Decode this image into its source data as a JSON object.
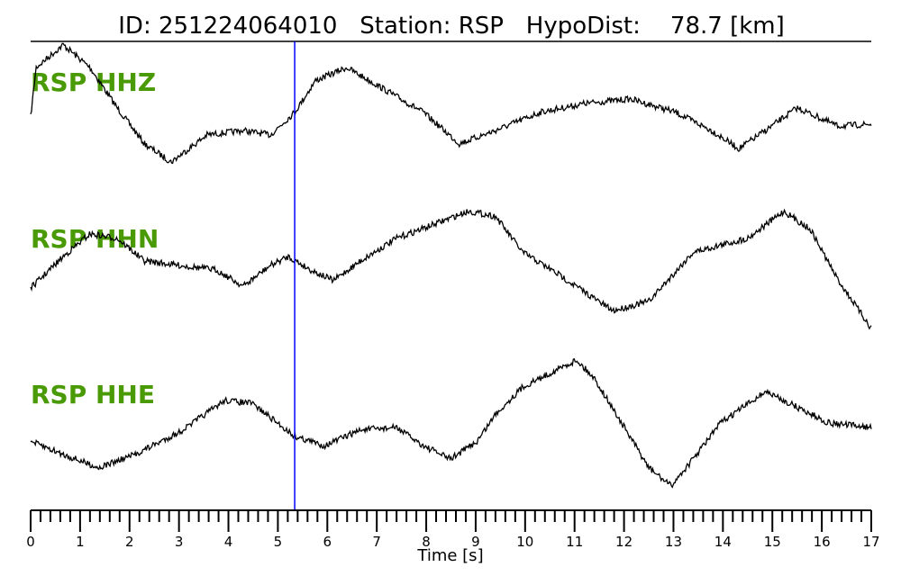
{
  "chart_data": {
    "type": "line",
    "title": "ID: 251224064010   Station: RSP   HypoDist:    78.7 [km]",
    "xlabel": "Time [s]",
    "xlim": [
      0,
      17
    ],
    "xticks": [
      "0",
      "1",
      "2",
      "3",
      "4",
      "5",
      "6",
      "7",
      "8",
      "9",
      "10",
      "11",
      "12",
      "13",
      "14",
      "15",
      "16",
      "17"
    ],
    "minor_tick_step": 0.2,
    "label_color": "#4a9a06",
    "trace_color": "#000000",
    "marker": {
      "time": 5.34,
      "color": "#0000ff"
    },
    "grid": false,
    "series": [
      {
        "name": "RSP HHZ",
        "t": [
          0,
          0.11,
          0.66,
          1.2,
          1.75,
          2.3,
          2.84,
          3.57,
          4.3,
          4.85,
          5.34,
          5.76,
          6.39,
          7.03,
          7.94,
          8.67,
          9.4,
          10.31,
          11.22,
          12.13,
          13.04,
          13.77,
          14.32,
          14.86,
          15.5,
          16.32,
          17
        ],
        "amp": [
          -0.29,
          0.5,
          0.86,
          0.5,
          -0.14,
          -0.71,
          -1.0,
          -0.57,
          -0.5,
          -0.57,
          -0.21,
          0.29,
          0.5,
          0.21,
          -0.21,
          -0.71,
          -0.5,
          -0.21,
          -0.07,
          0,
          -0.21,
          -0.5,
          -0.79,
          -0.5,
          -0.14,
          -0.43,
          -0.4
        ]
      },
      {
        "name": "RSP HHN",
        "t": [
          0,
          0.66,
          1.2,
          1.75,
          2.3,
          3.02,
          3.75,
          4.3,
          4.85,
          5.21,
          5.66,
          6.12,
          6.67,
          7.4,
          8.12,
          8.85,
          9.4,
          9.95,
          10.67,
          11.77,
          12.5,
          13.4,
          14.5,
          15.23,
          15.77,
          16.32,
          17
        ],
        "amp": [
          -0.43,
          0.07,
          0.43,
          0.36,
          0,
          -0.07,
          -0.14,
          -0.4,
          -0.07,
          0.07,
          -0.14,
          -0.31,
          0,
          0.36,
          0.57,
          0.79,
          0.71,
          0.14,
          -0.21,
          -0.79,
          -0.64,
          0.14,
          0.36,
          0.79,
          0.5,
          -0.29,
          -1.07
        ]
      },
      {
        "name": "RSP HHE",
        "t": [
          0,
          0.66,
          1.38,
          2.11,
          3.02,
          3.93,
          4.48,
          5.34,
          5.94,
          6.67,
          7.4,
          7.94,
          8.49,
          9.03,
          9.4,
          9.95,
          11.04,
          11.4,
          11.95,
          12.5,
          12.95,
          13.4,
          13.95,
          14.86,
          15.4,
          16.14,
          17
        ],
        "amp": [
          -0.29,
          -0.5,
          -0.71,
          -0.5,
          -0.14,
          0.36,
          0.31,
          -0.21,
          -0.36,
          -0.11,
          -0.07,
          -0.36,
          -0.57,
          -0.29,
          0.14,
          0.57,
          1.0,
          0.71,
          0,
          -0.71,
          -1.0,
          -0.57,
          0,
          0.5,
          0.29,
          0,
          -0.07
        ]
      }
    ]
  }
}
